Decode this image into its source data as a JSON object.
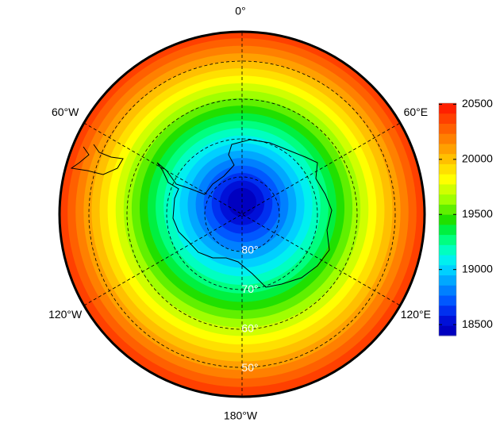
{
  "map": {
    "longitude_labels": [
      "0°",
      "60°E",
      "120°E",
      "180°W",
      "120°W",
      "60°W"
    ],
    "latitude_labels": [
      "80°",
      "70°",
      "60°",
      "50°"
    ],
    "colorbar": {
      "range": [
        18400,
        20510
      ],
      "ticks": [
        18500,
        19000,
        19500,
        20000,
        20500
      ],
      "colors": [
        "#0000c0",
        "#0010d8",
        "#0030f0",
        "#0058ff",
        "#0080ff",
        "#00a8ff",
        "#00d0ff",
        "#00f0f0",
        "#00ffc0",
        "#00ff80",
        "#00f040",
        "#20e000",
        "#60f000",
        "#a0ff00",
        "#d0ff00",
        "#ffff00",
        "#ffe000",
        "#ffc000",
        "#ffa000",
        "#ff8000",
        "#ff6000",
        "#ff4000",
        "#ff2000"
      ]
    }
  }
}
